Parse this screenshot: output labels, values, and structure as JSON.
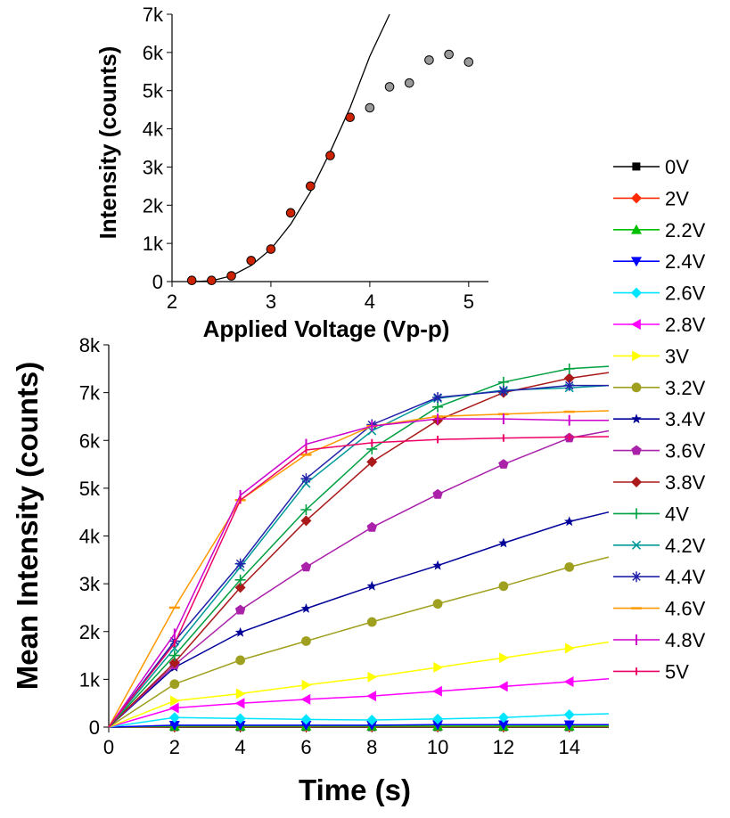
{
  "chart_data": [
    {
      "type": "scatter",
      "panel": "inset",
      "title": "",
      "xlabel": "Applied Voltage (Vp-p)",
      "ylabel": "Intensity (counts)",
      "xlim": [
        2,
        5.2
      ],
      "ylim": [
        0,
        7000
      ],
      "xticks": [
        "2",
        "3",
        "4",
        "5"
      ],
      "yticks": [
        "0",
        "1k",
        "2k",
        "3k",
        "4k",
        "5k",
        "6k",
        "7k"
      ],
      "series": [
        {
          "color": "#cc2200",
          "marker": "circle",
          "x": [
            2.2,
            2.4,
            2.6,
            2.8,
            3.0,
            3.2,
            3.4,
            3.6,
            3.8
          ],
          "y": [
            30,
            30,
            150,
            550,
            850,
            1800,
            2500,
            3300,
            4300
          ]
        },
        {
          "color": "#999999",
          "marker": "circle",
          "x": [
            4.0,
            4.2,
            4.4,
            4.6,
            4.8,
            5.0
          ],
          "y": [
            4550,
            5100,
            5200,
            5800,
            5950,
            5750
          ]
        },
        {
          "type": "fit-line",
          "color": "#000000",
          "x": [
            2.2,
            2.4,
            2.6,
            2.8,
            3.0,
            3.2,
            3.4,
            3.6,
            3.8,
            4.0,
            4.2
          ],
          "y": [
            0,
            20,
            150,
            420,
            850,
            1500,
            2350,
            3400,
            4550,
            5900,
            7100
          ]
        },
        {
          "type": "baseline",
          "color": "#000000",
          "style": "dotted",
          "x": [
            2.1,
            5.1
          ],
          "y": [
            0,
            0
          ]
        }
      ]
    },
    {
      "type": "line",
      "panel": "main",
      "title": "",
      "xlabel": "Time (s)",
      "ylabel": "Mean Intensity (counts)",
      "xlim": [
        0,
        15.2
      ],
      "ylim": [
        0,
        8000
      ],
      "xticks": [
        "0",
        "2",
        "4",
        "6",
        "8",
        "10",
        "12",
        "14"
      ],
      "yticks": [
        "0",
        "1k",
        "2k",
        "3k",
        "4k",
        "5k",
        "6k",
        "7k",
        "8k"
      ],
      "legend_position": "right",
      "x": [
        0,
        2,
        4,
        6,
        8,
        10,
        12,
        14,
        15.2
      ],
      "series": [
        {
          "name": "0V",
          "color": "#000000",
          "marker": "■",
          "values": [
            0,
            0,
            0,
            0,
            0,
            0,
            0,
            0,
            0
          ]
        },
        {
          "name": "2V",
          "color": "#ff2a00",
          "marker": "◆",
          "values": [
            0,
            10,
            10,
            10,
            10,
            10,
            10,
            10,
            10
          ]
        },
        {
          "name": "2.2V",
          "color": "#00c000",
          "marker": "▲",
          "values": [
            0,
            20,
            20,
            20,
            20,
            20,
            20,
            20,
            20
          ]
        },
        {
          "name": "2.4V",
          "color": "#0000ff",
          "marker": "▼",
          "values": [
            0,
            40,
            40,
            40,
            40,
            50,
            50,
            50,
            50
          ]
        },
        {
          "name": "2.6V",
          "color": "#00e5ff",
          "marker": "◆",
          "values": [
            0,
            200,
            180,
            160,
            150,
            170,
            200,
            260,
            280
          ]
        },
        {
          "name": "2.8V",
          "color": "#ff00ff",
          "marker": "◀",
          "values": [
            0,
            400,
            500,
            580,
            650,
            750,
            850,
            950,
            1010
          ]
        },
        {
          "name": "3V",
          "color": "#ffff00",
          "marker": "▶",
          "values": [
            0,
            550,
            700,
            880,
            1050,
            1250,
            1450,
            1650,
            1780
          ]
        },
        {
          "name": "3.2V",
          "color": "#a0a020",
          "marker": "●",
          "values": [
            0,
            900,
            1400,
            1800,
            2200,
            2580,
            2950,
            3350,
            3560
          ]
        },
        {
          "name": "3.4V",
          "color": "#000099",
          "marker": "★",
          "values": [
            0,
            1250,
            1980,
            2480,
            2950,
            3380,
            3850,
            4300,
            4500
          ]
        },
        {
          "name": "3.6V",
          "color": "#aa22aa",
          "marker": "⬟",
          "values": [
            0,
            1300,
            2450,
            3350,
            4180,
            4870,
            5500,
            6050,
            6200
          ]
        },
        {
          "name": "3.8V",
          "color": "#aa1a1a",
          "marker": "◆",
          "values": [
            0,
            1350,
            2920,
            4320,
            5550,
            6420,
            7000,
            7300,
            7420
          ]
        },
        {
          "name": "4V",
          "color": "#00a040",
          "marker": "+",
          "values": [
            0,
            1500,
            3080,
            4550,
            5820,
            6700,
            7220,
            7500,
            7550
          ]
        },
        {
          "name": "4.2V",
          "color": "#009999",
          "marker": "×",
          "values": [
            0,
            1650,
            3350,
            5100,
            6200,
            6880,
            7050,
            7100,
            7150
          ]
        },
        {
          "name": "4.4V",
          "color": "#2222aa",
          "marker": "✳",
          "values": [
            0,
            1800,
            3420,
            5200,
            6330,
            6900,
            7030,
            7150,
            7150
          ]
        },
        {
          "name": "4.6V",
          "color": "#ff9900",
          "marker": "–",
          "values": [
            0,
            2500,
            4750,
            5700,
            6300,
            6500,
            6550,
            6600,
            6620
          ]
        },
        {
          "name": "4.8V",
          "color": "#cc00cc",
          "marker": "|",
          "values": [
            0,
            1950,
            4850,
            5920,
            6300,
            6450,
            6450,
            6420,
            6420
          ]
        },
        {
          "name": "5V",
          "color": "#ee0066",
          "marker": "ı",
          "values": [
            0,
            1750,
            4750,
            5800,
            5950,
            6020,
            6050,
            6070,
            6080
          ]
        }
      ]
    }
  ]
}
